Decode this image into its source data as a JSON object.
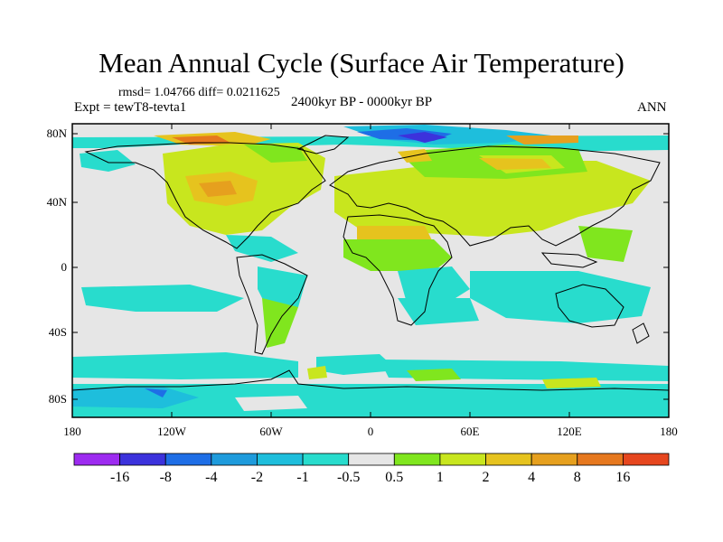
{
  "figure": {
    "title": "Mean Annual Cycle (Surface Air Temperature)",
    "stats": "rmsd= 1.04766 diff= 0.0211625",
    "experiment": "Expt = tewT8-tevta1",
    "period": "2400kyr BP - 0000kyr BP",
    "season": "ANN"
  },
  "axes": {
    "lat_ticks": [
      "80N",
      "40N",
      "0",
      "40S",
      "80S"
    ],
    "lon_ticks": [
      "180",
      "120W",
      "60W",
      "0",
      "60E",
      "120E",
      "180"
    ]
  },
  "colorbar": {
    "labels": [
      "-16",
      "-8",
      "-4",
      "-2",
      "-1",
      "-0.5",
      "0.5",
      "1",
      "2",
      "4",
      "8",
      "16"
    ],
    "colors": [
      "#9d2bf0",
      "#3c32dc",
      "#1e6ee6",
      "#1e9bdc",
      "#1ebedc",
      "#28dccd",
      "#e6e6e6",
      "#80e61e",
      "#c8e61e",
      "#e6c31e",
      "#e6a01e",
      "#e6781e",
      "#e6461e"
    ]
  }
}
